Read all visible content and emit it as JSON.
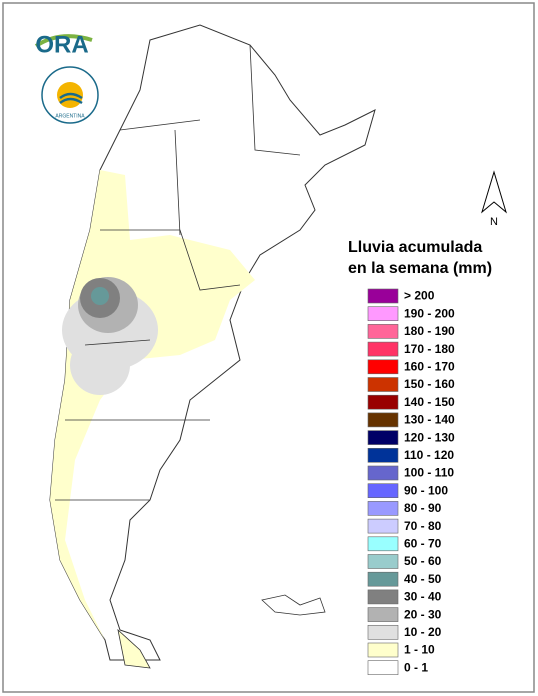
{
  "logo": {
    "text": "ORA",
    "seal": "ARGENTINA"
  },
  "compass": "N",
  "legend": {
    "title_lines": [
      "Lluvia acumulada",
      "en la semana (mm)"
    ],
    "items": [
      {
        "label": "> 200",
        "color": "#990099"
      },
      {
        "label": "190 - 200",
        "color": "#ff99ff"
      },
      {
        "label": "180 - 190",
        "color": "#ff6699"
      },
      {
        "label": "170 - 180",
        "color": "#ff3366"
      },
      {
        "label": "160 - 170",
        "color": "#ff0000"
      },
      {
        "label": "150 - 160",
        "color": "#cc3300"
      },
      {
        "label": "140 - 150",
        "color": "#990000"
      },
      {
        "label": "130 - 140",
        "color": "#663300"
      },
      {
        "label": "120 - 130",
        "color": "#000066"
      },
      {
        "label": "110 - 120",
        "color": "#003399"
      },
      {
        "label": "100 - 110",
        "color": "#6666cc"
      },
      {
        "label": "90 - 100",
        "color": "#6666ff"
      },
      {
        "label": "80 - 90",
        "color": "#9999ff"
      },
      {
        "label": "70 - 80",
        "color": "#ccccff"
      },
      {
        "label": "60 - 70",
        "color": "#99ffff"
      },
      {
        "label": "50 - 60",
        "color": "#99cccc"
      },
      {
        "label": "40 - 50",
        "color": "#669999"
      },
      {
        "label": "30 - 40",
        "color": "#808080"
      },
      {
        "label": "20 - 30",
        "color": "#b2b2b2"
      },
      {
        "label": "10 - 20",
        "color": "#e0e0e0"
      },
      {
        "label": "1 - 10",
        "color": "#ffffcc"
      },
      {
        "label": "0 - 1",
        "color": "#ffffff"
      }
    ]
  }
}
